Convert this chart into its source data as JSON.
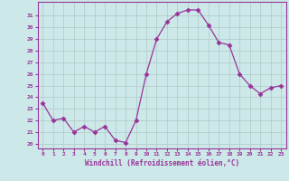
{
  "x": [
    0,
    1,
    2,
    3,
    4,
    5,
    6,
    7,
    8,
    9,
    10,
    11,
    12,
    13,
    14,
    15,
    16,
    17,
    18,
    19,
    20,
    21,
    22,
    23
  ],
  "y": [
    23.5,
    22.0,
    22.2,
    21.0,
    21.5,
    21.0,
    21.5,
    20.3,
    20.1,
    22.0,
    26.0,
    29.0,
    30.5,
    31.2,
    31.5,
    31.5,
    30.2,
    28.7,
    28.5,
    26.0,
    25.0,
    24.3,
    24.8,
    25.0
  ],
  "line_color": "#993399",
  "marker": "D",
  "marker_size": 2.5,
  "bg_color": "#cce8e8",
  "grid_color": "#b0c8c8",
  "xlabel": "Windchill (Refroidissement éolien,°C)",
  "xlabel_color": "#993399",
  "ylabel_ticks": [
    20,
    21,
    22,
    23,
    24,
    25,
    26,
    27,
    28,
    29,
    30,
    31
  ],
  "ylim": [
    19.6,
    32.2
  ],
  "xlim": [
    -0.5,
    23.5
  ],
  "tick_color": "#993399",
  "spine_color": "#993399"
}
